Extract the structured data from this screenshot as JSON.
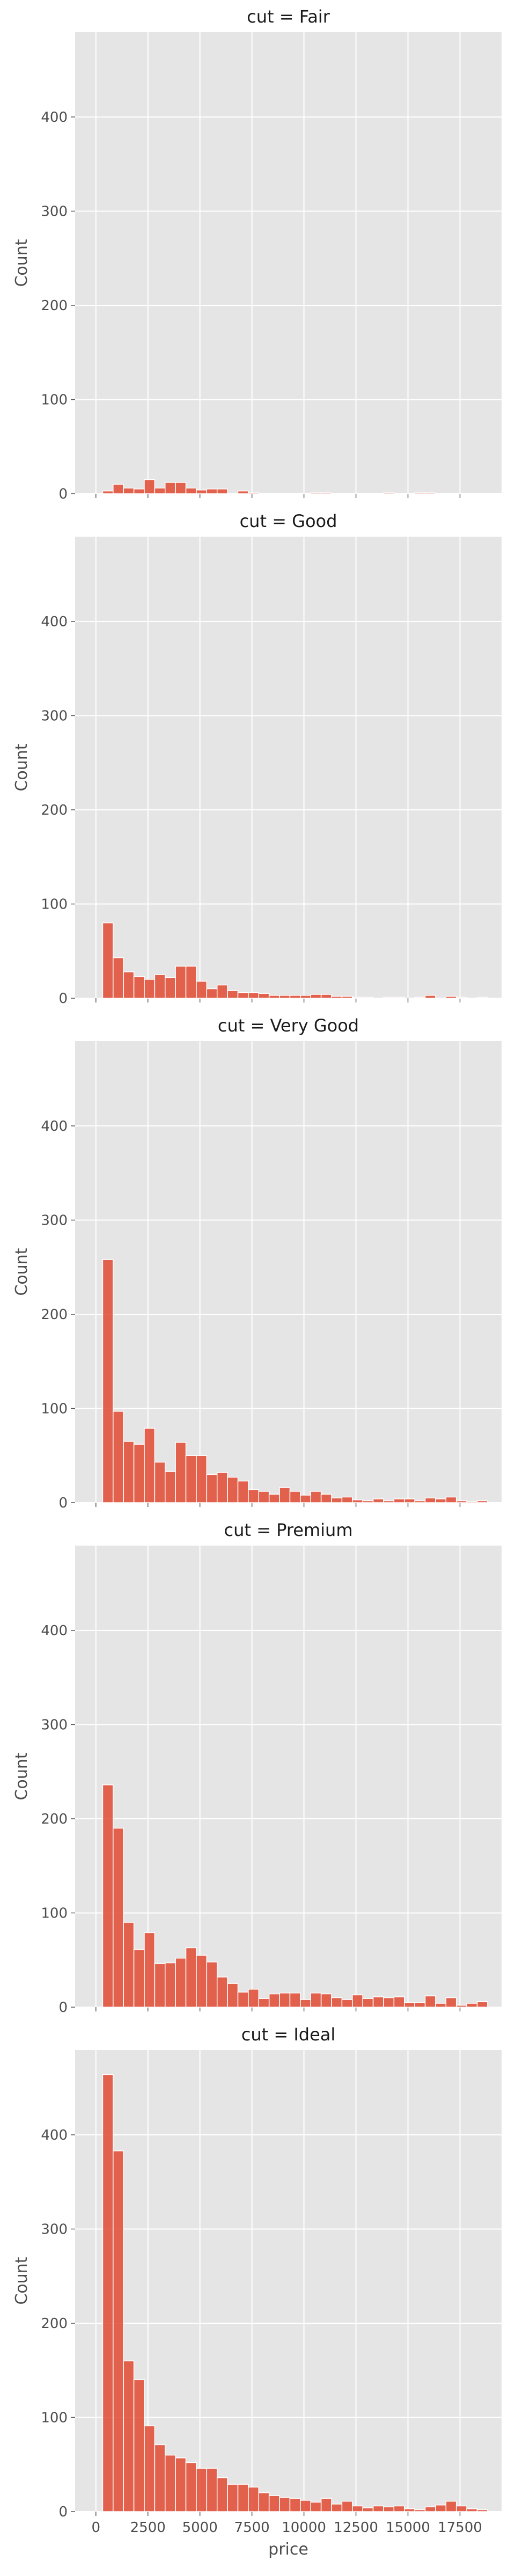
{
  "chart_data": {
    "type": "bar",
    "layout": "facet-grid, single column, shared x and y axes",
    "xlabel": "price",
    "ylabel": "Count",
    "xlim": [
      -1000,
      19500
    ],
    "ylim": [
      0,
      490
    ],
    "x_ticks": [
      0,
      2500,
      5000,
      7500,
      10000,
      12500,
      15000,
      17500
    ],
    "y_ticks": [
      0,
      100,
      200,
      300,
      400
    ],
    "grid": true,
    "bin_width": 500,
    "bin_start": 326,
    "colors": {
      "bar": "#e24a33",
      "bar_edge": "#ffffff",
      "panel_bg": "#e5e5e5",
      "grid": "#ffffff",
      "text": "#4d4d4d"
    },
    "facets": [
      {
        "title": "cut = Fair",
        "values": [
          3,
          10,
          6,
          5,
          15,
          6,
          12,
          12,
          6,
          4,
          5,
          5,
          0,
          3,
          1,
          0,
          0,
          0,
          0,
          0,
          1,
          1,
          0,
          0,
          0,
          0,
          0,
          1,
          0,
          0,
          1,
          1,
          0,
          0,
          0,
          0,
          0
        ]
      },
      {
        "title": "cut = Good",
        "values": [
          80,
          43,
          28,
          23,
          20,
          25,
          22,
          34,
          34,
          18,
          10,
          14,
          8,
          6,
          6,
          5,
          3,
          3,
          3,
          3,
          4,
          4,
          2,
          2,
          1,
          1,
          0,
          1,
          1,
          0,
          1,
          3,
          0,
          2,
          1,
          0,
          1
        ]
      },
      {
        "title": "cut = Very Good",
        "values": [
          258,
          97,
          65,
          62,
          79,
          43,
          33,
          64,
          50,
          50,
          30,
          32,
          27,
          23,
          14,
          12,
          9,
          16,
          12,
          8,
          12,
          9,
          5,
          6,
          3,
          2,
          4,
          2,
          4,
          4,
          2,
          5,
          4,
          6,
          2,
          1,
          2
        ]
      },
      {
        "title": "cut = Premium",
        "values": [
          236,
          190,
          90,
          61,
          79,
          46,
          47,
          52,
          63,
          55,
          48,
          32,
          25,
          16,
          19,
          9,
          14,
          15,
          15,
          8,
          15,
          14,
          10,
          8,
          13,
          9,
          11,
          10,
          11,
          5,
          5,
          12,
          4,
          10,
          2,
          4,
          6
        ]
      },
      {
        "title": "cut = Ideal",
        "values": [
          464,
          383,
          160,
          140,
          91,
          71,
          60,
          57,
          52,
          46,
          46,
          36,
          29,
          29,
          26,
          20,
          17,
          15,
          14,
          12,
          10,
          14,
          8,
          11,
          6,
          4,
          6,
          5,
          6,
          3,
          2,
          5,
          7,
          11,
          6,
          3,
          2
        ]
      }
    ]
  }
}
